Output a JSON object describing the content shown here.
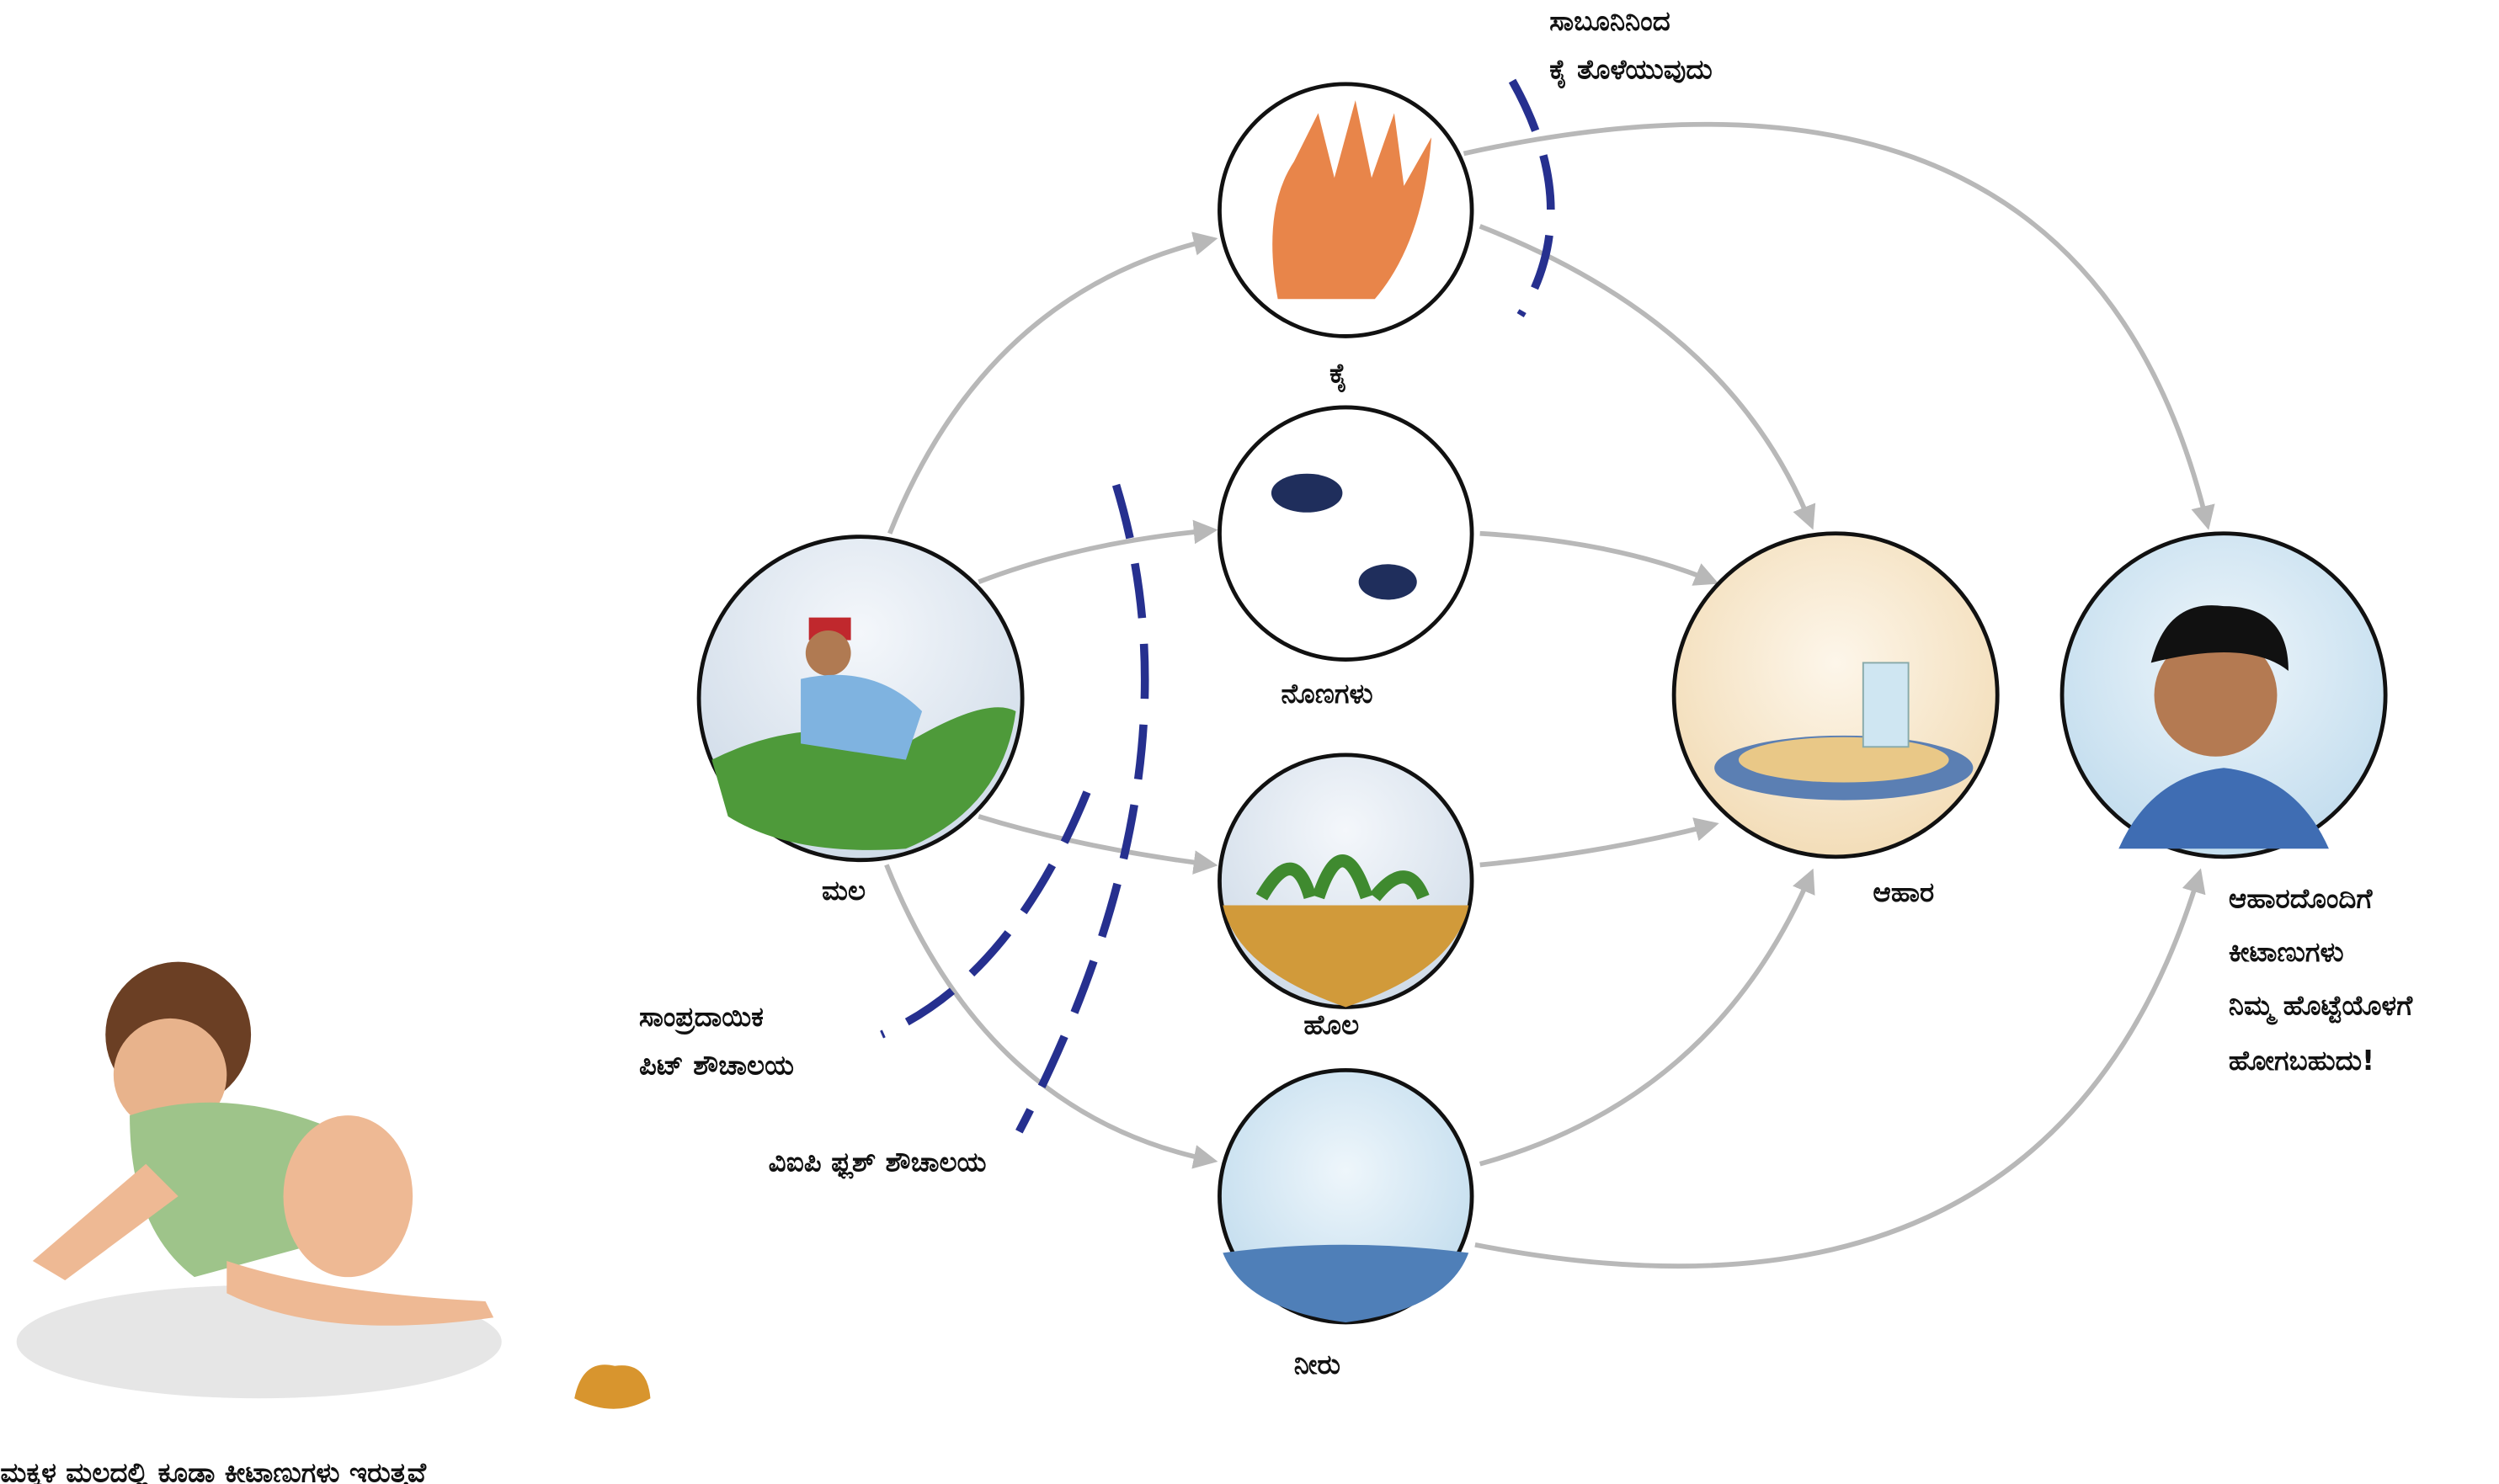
{
  "nodes": [
    {
      "label": "ಮಲ"
    },
    {
      "label": "ಕೈ"
    },
    {
      "label": "ನೊಣಗಳು"
    },
    {
      "label": "ಹೊಲ"
    },
    {
      "label": "ನೀರು"
    },
    {
      "label": "ಆಹಾರ"
    },
    {
      "lines": [
        "ಆಹಾರದೊಂದಿಗೆ",
        "ಕೀಟಾಣುಗಳು",
        "ನಿಮ್ಮ ಹೊಟ್ಟೆಯೊಳಗೆ",
        "ಹೋಗಬಹುದು!"
      ]
    }
  ],
  "barriers": [
    {
      "lines": [
        "ಸಾಬೂನಿನಿಂದ",
        "ಕೈ ತೊಳೆಯುವುದು"
      ]
    },
    {
      "lines": [
        "ಸಾಂಪ್ರದಾಯಿಕ",
        "ಪಿಟ್ ಶೌಚಾಲಯ"
      ]
    },
    {
      "lines": [
        "ವಿಐಪಿ ಫ್ಲಶ್ ಶೌಚಾಲಯ"
      ]
    }
  ],
  "caption": "ಮಕ್ಕಳ ಮಲದಲ್ಲಿ ಕೂಡಾ ಕೀಟಾಣುಗಳು ಇರುತ್ತವೆ"
}
